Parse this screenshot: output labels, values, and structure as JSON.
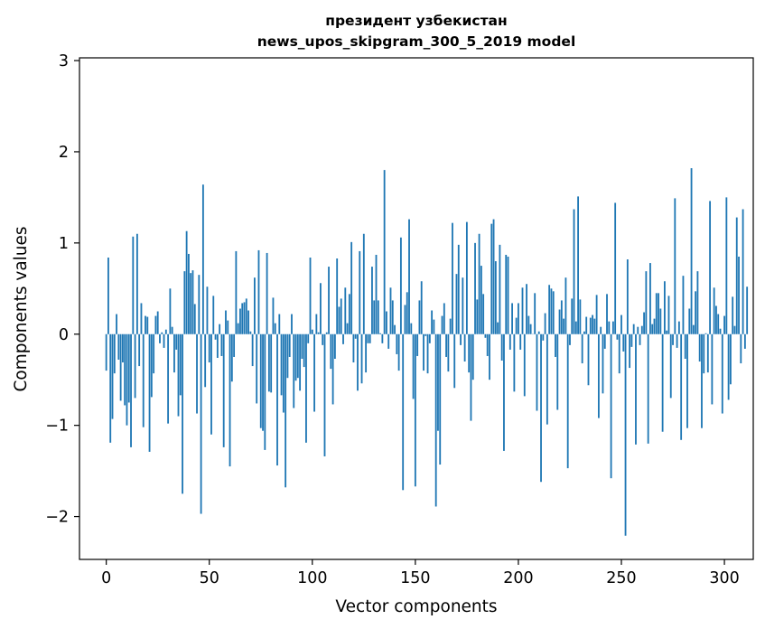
{
  "chart_data": {
    "type": "bar",
    "title_line1": "президент узбекистан",
    "title_line2": "news_upos_skipgram_300_5_2019 model",
    "xlabel": "Vector components",
    "ylabel": "Components values",
    "xlim": [
      -13,
      314
    ],
    "ylim": [
      -2.47,
      3.03
    ],
    "xticks": [
      0,
      50,
      100,
      150,
      200,
      250,
      300
    ],
    "yticks": [
      -2,
      -1,
      0,
      1,
      2,
      3
    ],
    "ytick_labels": [
      "−2",
      "−1",
      "0",
      "1",
      "2",
      "3"
    ],
    "bar_color": "#1f77b4",
    "grid": false,
    "values": [
      -0.4,
      0.84,
      -1.19,
      -0.93,
      -0.43,
      0.22,
      -0.28,
      -0.73,
      -0.31,
      -0.78,
      -1.0,
      -0.75,
      -1.24,
      1.07,
      -0.7,
      1.1,
      -0.35,
      0.34,
      -1.02,
      0.2,
      0.19,
      -1.29,
      -0.69,
      -0.43,
      0.2,
      0.25,
      -0.1,
      0.02,
      -0.15,
      0.05,
      -0.98,
      0.5,
      0.08,
      -0.42,
      -0.17,
      -0.9,
      -0.67,
      -1.75,
      0.69,
      1.13,
      0.88,
      0.67,
      0.7,
      0.33,
      -0.87,
      0.65,
      -1.97,
      1.64,
      -0.58,
      0.52,
      -0.31,
      -1.1,
      0.42,
      -0.06,
      -0.26,
      0.11,
      -0.24,
      -1.24,
      0.26,
      0.15,
      -1.45,
      -0.52,
      -0.25,
      0.91,
      0.12,
      0.28,
      0.34,
      0.35,
      0.39,
      0.26,
      0.03,
      -0.35,
      0.62,
      -0.76,
      0.92,
      -1.03,
      -1.06,
      -1.27,
      0.89,
      -0.63,
      -0.64,
      0.4,
      0.12,
      -1.44,
      0.22,
      -0.67,
      -0.86,
      -1.68,
      -0.48,
      -0.25,
      0.22,
      -0.81,
      -0.51,
      -0.48,
      -0.62,
      -0.27,
      -0.36,
      -1.19,
      -0.1,
      0.84,
      0.05,
      -0.85,
      0.22,
      0.02,
      0.56,
      -0.12,
      -1.34,
      0.02,
      0.74,
      -0.38,
      -0.77,
      -0.27,
      0.83,
      0.3,
      0.39,
      -0.11,
      0.51,
      0.12,
      0.44,
      1.01,
      -0.31,
      -0.05,
      -0.62,
      0.91,
      -0.54,
      1.1,
      -0.42,
      -0.1,
      -0.1,
      0.74,
      0.37,
      0.87,
      0.37,
      0.01,
      -0.1,
      1.8,
      0.25,
      -0.16,
      0.51,
      0.37,
      0.1,
      -0.22,
      -0.4,
      1.06,
      -1.71,
      0.32,
      0.46,
      1.26,
      0.12,
      -0.71,
      -1.67,
      -0.24,
      0.37,
      0.58,
      -0.4,
      -0.02,
      -0.43,
      -0.1,
      0.26,
      0.16,
      -1.89,
      -1.06,
      -1.43,
      0.2,
      0.34,
      -0.25,
      -0.41,
      0.17,
      1.22,
      -0.59,
      0.66,
      0.98,
      -0.12,
      0.62,
      -0.3,
      1.23,
      -0.42,
      -0.95,
      -0.5,
      1.0,
      0.38,
      1.1,
      0.75,
      0.44,
      -0.04,
      -0.24,
      -0.5,
      1.21,
      1.26,
      0.8,
      0.13,
      0.98,
      -0.29,
      -1.28,
      0.87,
      0.85,
      -0.17,
      0.34,
      -0.63,
      0.18,
      0.34,
      -0.17,
      0.51,
      -0.68,
      0.55,
      0.2,
      0.11,
      0.0,
      0.45,
      -0.84,
      0.03,
      -1.62,
      -0.07,
      0.23,
      -0.99,
      0.54,
      0.5,
      0.47,
      -0.25,
      -0.83,
      0.27,
      0.37,
      0.17,
      0.62,
      -1.47,
      -0.12,
      0.39,
      1.37,
      0.14,
      1.51,
      0.38,
      -0.32,
      0.03,
      0.19,
      -0.56,
      0.18,
      0.21,
      0.17,
      0.43,
      -0.92,
      0.08,
      -0.65,
      -0.16,
      0.44,
      0.14,
      -1.58,
      0.14,
      1.44,
      -0.06,
      -0.43,
      0.21,
      -0.19,
      -2.21,
      0.82,
      -0.37,
      -0.14,
      0.11,
      -1.21,
      0.08,
      -0.12,
      0.09,
      0.24,
      0.69,
      -1.2,
      0.78,
      0.11,
      0.17,
      0.45,
      0.45,
      0.28,
      -1.07,
      0.58,
      0.04,
      0.42,
      -0.7,
      -0.12,
      1.49,
      -0.15,
      0.14,
      -1.16,
      0.64,
      -0.27,
      -1.03,
      0.28,
      1.82,
      0.1,
      0.47,
      0.69,
      -0.3,
      -1.03,
      -0.43,
      0.01,
      -0.42,
      1.46,
      -0.77,
      0.51,
      0.31,
      0.22,
      0.06,
      -0.87,
      0.2,
      1.5,
      -0.72,
      -0.55,
      0.41,
      0.09,
      1.28,
      0.85,
      -0.32,
      1.37,
      -0.16,
      0.52
    ]
  }
}
